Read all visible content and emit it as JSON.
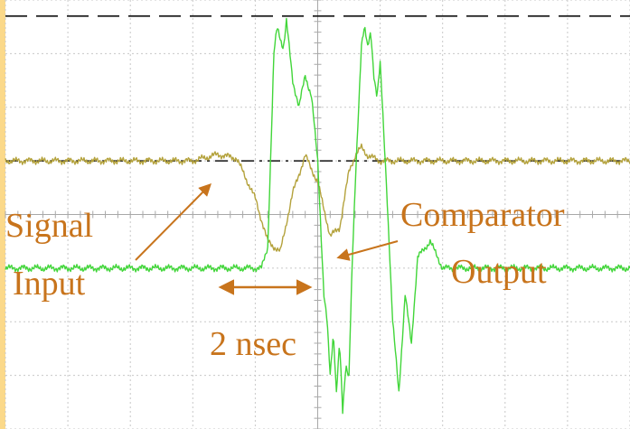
{
  "chart_data": {
    "type": "line",
    "title": "",
    "xlabel": "",
    "ylabel": "",
    "grid": true,
    "xlim": [
      0,
      10
    ],
    "ylim": [
      -4,
      4
    ],
    "grid_divisions": {
      "x": 10,
      "y": 8
    },
    "reference_lines": [
      {
        "style": "dashed",
        "y": 3.7
      },
      {
        "style": "dash-dot",
        "y": 1.0
      }
    ],
    "series": [
      {
        "color": "#b4a23c",
        "x": [
          0,
          1,
          2,
          3,
          3.4,
          3.7,
          4.0,
          4.2,
          4.4,
          4.6,
          4.8,
          5.0,
          5.2,
          5.35,
          5.5,
          5.6,
          5.7,
          5.8,
          6.0,
          6.5,
          7,
          8,
          9,
          10
        ],
        "values": [
          1.0,
          1.0,
          1.0,
          1.0,
          1.12,
          1.05,
          0.3,
          -0.5,
          -0.7,
          0.4,
          1.1,
          0.6,
          -0.4,
          -0.25,
          0.8,
          1.1,
          1.25,
          1.1,
          1.0,
          1.0,
          1.0,
          1.0,
          1.0,
          1.0
        ]
      },
      {
        "color": "#42d63a",
        "x": [
          0,
          1,
          2,
          3,
          4.1,
          4.2,
          4.3,
          4.35,
          4.45,
          4.5,
          4.6,
          4.7,
          4.8,
          4.9,
          5.0,
          5.1,
          5.15,
          5.2,
          5.25,
          5.3,
          5.35,
          5.4,
          5.45,
          5.5,
          5.55,
          5.6,
          5.7,
          5.75,
          5.8,
          5.85,
          5.9,
          5.95,
          6.0,
          6.1,
          6.2,
          6.3,
          6.4,
          6.5,
          6.6,
          6.8,
          7,
          8,
          9,
          10
        ],
        "values": [
          -1.0,
          -1.0,
          -1.0,
          -1.0,
          -1.0,
          -0.6,
          3.0,
          3.5,
          3.1,
          3.6,
          2.5,
          2.0,
          2.6,
          2.2,
          1.0,
          -1.5,
          -2.0,
          -3.0,
          -2.2,
          -3.3,
          -2.4,
          -3.7,
          -2.8,
          -3.0,
          -1.0,
          0.5,
          3.2,
          3.5,
          3.1,
          3.4,
          2.6,
          2.2,
          2.8,
          0.6,
          -2.0,
          -3.3,
          -1.5,
          -2.4,
          -0.8,
          -0.5,
          -1.0,
          -1.0,
          -1.0,
          -1.0
        ]
      }
    ],
    "annotations": [
      {
        "id": "signal",
        "lines": [
          "Signal",
          "Input"
        ],
        "color": "#c8741c"
      },
      {
        "id": "comparator",
        "lines": [
          "Comparator",
          "Output"
        ],
        "color": "#c8741c"
      },
      {
        "id": "interval",
        "text": "2 nsec",
        "color": "#c8741c"
      }
    ]
  }
}
